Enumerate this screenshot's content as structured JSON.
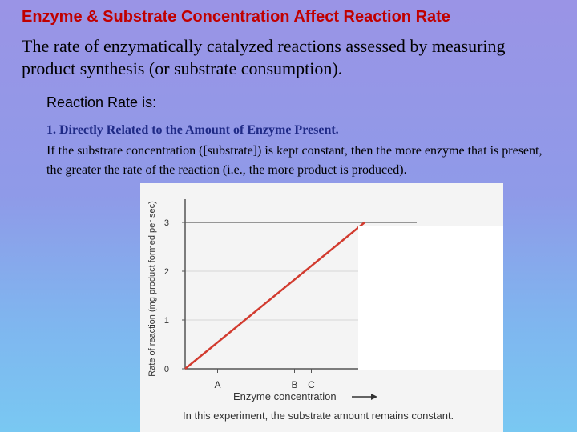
{
  "slide": {
    "title": "Enzyme & Substrate Concentration Affect Reaction Rate",
    "intro": "The rate of enzymatically catalyzed reactions assessed by measuring product synthesis (or substrate consumption).",
    "subhead_prefix": "Reaction Rate is",
    "subhead_colon": ":",
    "point_title": "1. Directly Related to the Amount of Enzyme Present.",
    "point_body": "If the substrate concentration ([substrate]) is kept constant, then the more enzyme that is present, the greater the rate of the reaction (i.e., the more product is produced)."
  },
  "colors": {
    "title": "#c00000",
    "point_title": "#1f2a86",
    "line": "#d23b2f"
  },
  "figure": {
    "caption": "In this experiment, the substrate amount remains constant.",
    "arrow_icon": "right-arrow"
  },
  "chart_data": {
    "type": "line",
    "xlabel": "Enzyme concentration",
    "ylabel": "Rate of reaction (mg product formed per sec)",
    "x_ticks": [
      "A",
      "B",
      "C"
    ],
    "y_ticks": [
      "0",
      "1",
      "2",
      "3"
    ],
    "ylim": [
      0,
      3.2
    ],
    "grid": true,
    "series": [
      {
        "points": [
          {
            "x": 0,
            "y": 0
          },
          {
            "x": 1,
            "y": 3
          }
        ]
      }
    ]
  }
}
